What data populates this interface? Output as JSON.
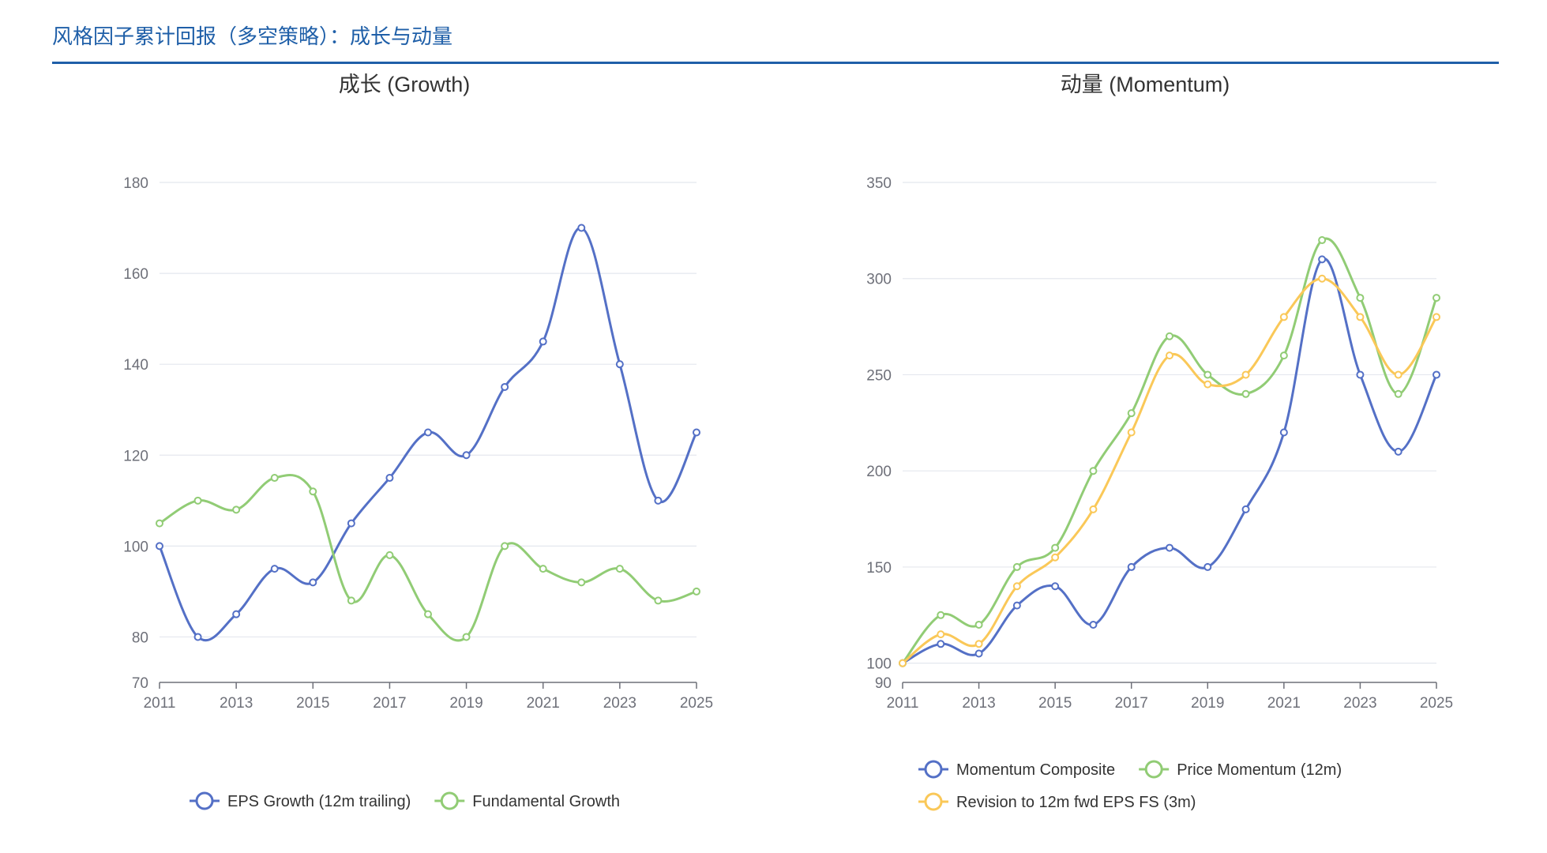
{
  "header": {
    "title": "风格因子累计回报（多空策略）：成长与动量"
  },
  "chart_data": [
    {
      "type": "line",
      "title": "成长 (Growth)",
      "x": [
        "2011",
        "2012",
        "2013",
        "2014",
        "2015",
        "2016",
        "2017",
        "2018",
        "2019",
        "2020",
        "2021",
        "2022",
        "2023",
        "2024",
        "2025"
      ],
      "xticks": [
        "2011",
        "2013",
        "2015",
        "2017",
        "2019",
        "2021",
        "2023",
        "2025"
      ],
      "yticks": [
        70,
        80,
        100,
        120,
        140,
        160,
        180
      ],
      "ylim": [
        70,
        180
      ],
      "series": [
        {
          "name": "EPS Growth (12m trailing)",
          "color": "#5470c6",
          "values": [
            100,
            80,
            85,
            95,
            92,
            105,
            115,
            125,
            120,
            135,
            145,
            170,
            140,
            110,
            125
          ]
        },
        {
          "name": "Fundamental Growth",
          "color": "#91cc75",
          "values": [
            105,
            110,
            108,
            115,
            112,
            88,
            98,
            85,
            80,
            100,
            95,
            92,
            95,
            88,
            90
          ]
        }
      ]
    },
    {
      "type": "line",
      "title": "动量 (Momentum)",
      "x": [
        "2011",
        "2012",
        "2013",
        "2014",
        "2015",
        "2016",
        "2017",
        "2018",
        "2019",
        "2020",
        "2021",
        "2022",
        "2023",
        "2024",
        "2025"
      ],
      "xticks": [
        "2011",
        "2013",
        "2015",
        "2017",
        "2019",
        "2021",
        "2023",
        "2025"
      ],
      "yticks": [
        90,
        100,
        150,
        200,
        250,
        300,
        350
      ],
      "ylim": [
        90,
        350
      ],
      "series": [
        {
          "name": "Momentum Composite",
          "color": "#5470c6",
          "values": [
            100,
            110,
            105,
            130,
            140,
            120,
            150,
            160,
            150,
            180,
            220,
            310,
            250,
            210,
            250
          ]
        },
        {
          "name": "Price Momentum (12m)",
          "color": "#91cc75",
          "values": [
            100,
            125,
            120,
            150,
            160,
            200,
            230,
            270,
            250,
            240,
            260,
            320,
            290,
            240,
            290
          ]
        },
        {
          "name": "Revision to 12m fwd EPS FS (3m)",
          "color": "#fac858",
          "values": [
            100,
            115,
            110,
            140,
            155,
            180,
            220,
            260,
            245,
            250,
            280,
            300,
            280,
            250,
            280
          ]
        }
      ]
    }
  ]
}
